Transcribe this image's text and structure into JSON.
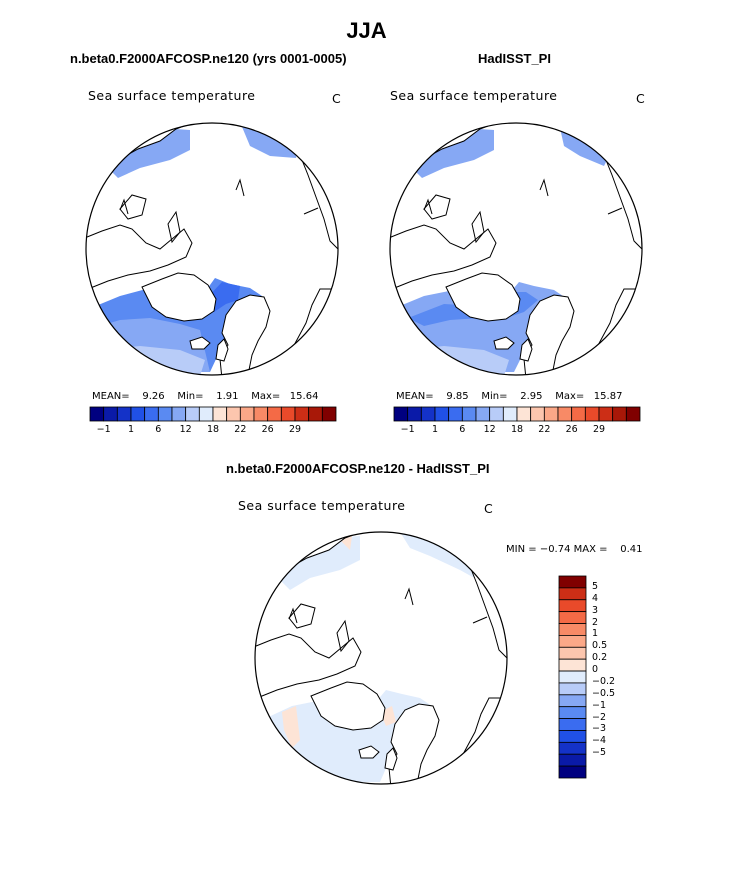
{
  "page": {
    "title": "JJA"
  },
  "panels": [
    {
      "title": "n.beta0.F2000AFCOSP.ne120 (yrs 0001-0005)",
      "variable": "Sea surface temperature",
      "units": "C",
      "stats": {
        "mean_label": "MEAN=",
        "mean": "9.26",
        "min_label": "Min=",
        "min": "1.91",
        "max_label": "Max=",
        "max": "15.64"
      }
    },
    {
      "title": "HadISST_PI",
      "variable": "Sea surface temperature",
      "units": "C",
      "stats": {
        "mean_label": "MEAN=",
        "mean": "9.85",
        "min_label": "Min=",
        "min": "2.95",
        "max_label": "Max=",
        "max": "15.87"
      }
    }
  ],
  "diff_panel": {
    "title": "n.beta0.F2000AFCOSP.ne120 - HadISST_PI",
    "variable": "Sea surface temperature",
    "units": "C",
    "minmax": {
      "min_label": "MIN =",
      "min": "−0.74",
      "max_label": "MAX =",
      "max": "0.41"
    }
  },
  "colorbar_top": {
    "colors": [
      "#000080",
      "#0a1aa8",
      "#1432c8",
      "#2050e6",
      "#3a6cf0",
      "#5a8af2",
      "#86a8f4",
      "#b8ccf8",
      "#e0ecfc",
      "#fde4d6",
      "#fcc6ae",
      "#fba888",
      "#f88a66",
      "#f46a46",
      "#e94a2a",
      "#cc2e16",
      "#a81808",
      "#800000"
    ],
    "tick_labels": [
      "−1",
      "1",
      "6",
      "12",
      "18",
      "22",
      "26",
      "29"
    ]
  },
  "colorbar_diff": {
    "colors": [
      "#000080",
      "#0a1aa8",
      "#1432c8",
      "#2050e6",
      "#3a6cf0",
      "#5a8af2",
      "#86a8f4",
      "#b8ccf8",
      "#e0ecfc",
      "#fde4d6",
      "#fcc6ae",
      "#fba888",
      "#f88a66",
      "#f46a46",
      "#e94a2a",
      "#cc2e16",
      "#800000"
    ],
    "tick_labels": [
      "5",
      "4",
      "3",
      "2",
      "1",
      "0.5",
      "0.2",
      "0",
      "−0.2",
      "−0.5",
      "−1",
      "−2",
      "−3",
      "−4",
      "−5"
    ]
  },
  "map_colors": {
    "ocean_light": "#b8ccf8",
    "ocean_mid": "#86a8f4",
    "ocean_dark": "#5a8af2",
    "ocean_deep": "#3a6cf0",
    "diff_neutral": "#e0ecfc",
    "diff_warm": "#fde4d6"
  }
}
